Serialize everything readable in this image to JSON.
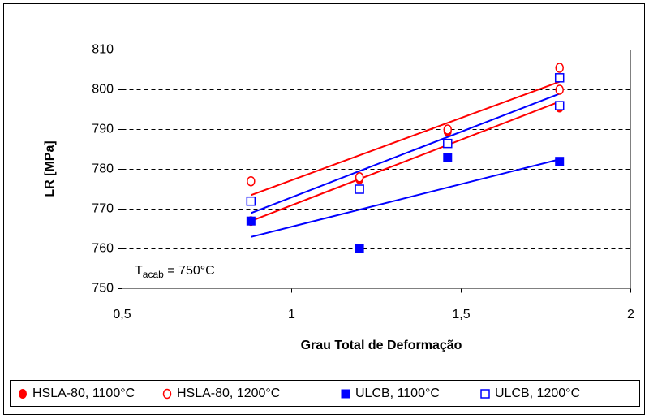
{
  "chart_data": {
    "type": "scatter",
    "xlabel": "Grau Total de Deformação",
    "ylabel": "LR [MPa]",
    "annotation": {
      "text": "T",
      "sub": "acab",
      "rest": " = 750°C"
    },
    "xlim": [
      0.5,
      2
    ],
    "ylim": [
      750,
      810
    ],
    "xticks": [
      {
        "value": 0.5,
        "label": "0,5"
      },
      1,
      {
        "value": 1.5,
        "label": "1,5"
      },
      2
    ],
    "yticks": [
      750,
      760,
      770,
      780,
      790,
      800,
      810
    ],
    "grid": true,
    "series": [
      {
        "name": "HSLA-80, 1100°C",
        "color": "#ff0000",
        "marker": "circle",
        "filled": true,
        "x": [
          0.88,
          1.2,
          1.46,
          1.79
        ],
        "values": [
          767,
          777.5,
          789.5,
          795.5
        ]
      },
      {
        "name": "HSLA-80, 1200°C",
        "color": "#ff0000",
        "marker": "circle",
        "filled": false,
        "x": [
          0.88,
          1.2,
          1.46,
          1.79,
          1.79
        ],
        "values": [
          777,
          778,
          790,
          805.5,
          800
        ]
      },
      {
        "name": "ULCB, 1100°C",
        "color": "#0000ff",
        "marker": "square",
        "filled": true,
        "x": [
          0.88,
          1.2,
          1.46,
          1.79
        ],
        "values": [
          767,
          760,
          783,
          782
        ]
      },
      {
        "name": "ULCB, 1200°C",
        "color": "#0000ff",
        "marker": "square",
        "filled": false,
        "x": [
          0.88,
          1.2,
          1.46,
          1.79,
          1.79
        ],
        "values": [
          772,
          775,
          786.5,
          803,
          796
        ]
      }
    ],
    "trendlines": [
      {
        "color": "#ff0000",
        "x": [
          0.88,
          1.79
        ],
        "values": [
          767,
          797
        ]
      },
      {
        "color": "#ff0000",
        "x": [
          0.88,
          1.79
        ],
        "values": [
          773.5,
          802
        ]
      },
      {
        "color": "#0000ff",
        "x": [
          0.88,
          1.79
        ],
        "values": [
          763,
          782.5
        ]
      },
      {
        "color": "#0000ff",
        "x": [
          0.88,
          1.79
        ],
        "values": [
          769,
          799
        ]
      }
    ]
  }
}
